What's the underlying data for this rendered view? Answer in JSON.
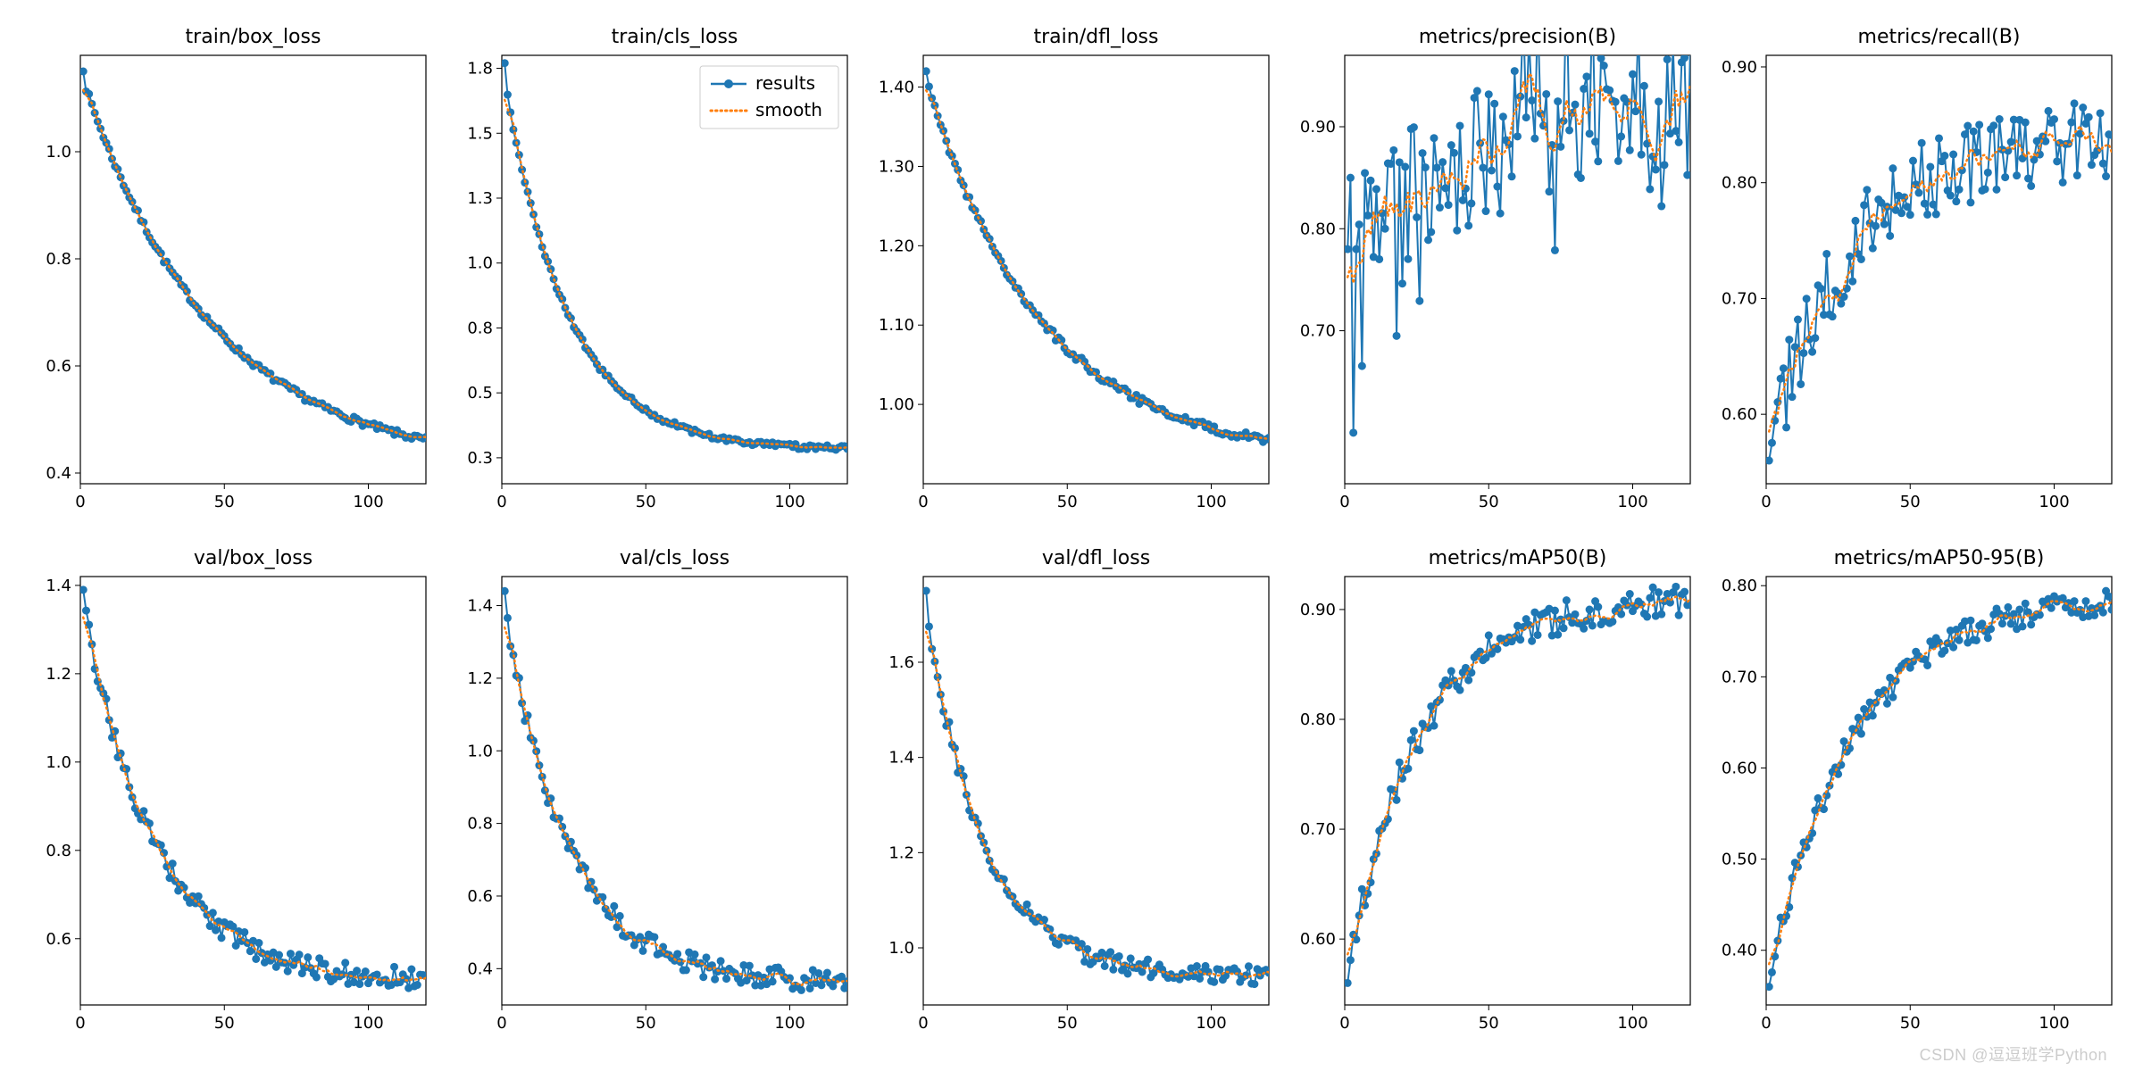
{
  "global": {
    "background_color": "#ffffff",
    "font_family": "DejaVu Sans",
    "title_fontsize": 22,
    "tick_fontsize": 18,
    "legend_fontsize": 20,
    "axis_color": "#000000",
    "tick_color": "#000000",
    "results_color": "#1f77b4",
    "smooth_color": "#ff7f0e",
    "results_line_width": 2.0,
    "results_marker": "circle",
    "results_marker_size": 4.5,
    "smooth_line_width": 2.5,
    "smooth_dash": "1.5,4",
    "n_points": 120,
    "xlim": [
      0,
      120
    ],
    "xticks": [
      0,
      50,
      100
    ],
    "watermark_text": "CSDN @逗逗班学Python",
    "watermark_color": "#cccccc"
  },
  "legend": {
    "panel_index": 1,
    "items": [
      "results",
      "smooth"
    ],
    "border_color": "#cccccc",
    "bg_color": "#ffffff"
  },
  "panels": [
    {
      "title": "train/box_loss",
      "type": "line",
      "curve": "decay",
      "start": 1.15,
      "end": 0.41,
      "tau": 45,
      "noise": 0.006,
      "ylim": [
        0.38,
        1.18
      ],
      "yticks": [
        0.4,
        0.6,
        0.8,
        1.0
      ]
    },
    {
      "title": "train/cls_loss",
      "type": "line",
      "curve": "decay",
      "start": 1.77,
      "end": 0.28,
      "tau": 22,
      "noise": 0.01,
      "ylim": [
        0.15,
        1.8
      ],
      "yticks": [
        0.25,
        0.5,
        0.75,
        1.0,
        1.25,
        1.5,
        1.75
      ],
      "show_legend": true
    },
    {
      "title": "train/dfl_loss",
      "type": "line",
      "curve": "decay",
      "start": 1.42,
      "end": 0.93,
      "tau": 40,
      "noise": 0.005,
      "ylim": [
        0.9,
        1.44
      ],
      "yticks": [
        1.0,
        1.1,
        1.2,
        1.3,
        1.4
      ]
    },
    {
      "title": "metrics/precision(B)",
      "type": "line",
      "curve": "growth",
      "start": 0.78,
      "end": 0.93,
      "tau": 50,
      "noise": 0.065,
      "ylim": [
        0.55,
        0.97
      ],
      "yticks": [
        0.7,
        0.8,
        0.9
      ],
      "first_dip": 0.6
    },
    {
      "title": "metrics/recall(B)",
      "type": "line",
      "curve": "growth",
      "start": 0.56,
      "end": 0.84,
      "tau": 28,
      "noise": 0.035,
      "ylim": [
        0.54,
        0.91
      ],
      "yticks": [
        0.6,
        0.7,
        0.8,
        0.9
      ]
    },
    {
      "title": "val/box_loss",
      "type": "line",
      "curve": "decay",
      "start": 1.39,
      "end": 0.5,
      "tau": 25,
      "noise": 0.025,
      "ylim": [
        0.45,
        1.42
      ],
      "yticks": [
        0.6,
        0.8,
        1.0,
        1.2,
        1.4
      ]
    },
    {
      "title": "val/cls_loss",
      "type": "line",
      "curve": "decay",
      "start": 1.44,
      "end": 0.36,
      "tau": 22,
      "noise": 0.03,
      "ylim": [
        0.3,
        1.48
      ],
      "yticks": [
        0.4,
        0.6,
        0.8,
        1.0,
        1.2,
        1.4
      ]
    },
    {
      "title": "val/dfl_loss",
      "type": "line",
      "curve": "decay",
      "start": 1.75,
      "end": 0.94,
      "tau": 20,
      "noise": 0.02,
      "ylim": [
        0.88,
        1.78
      ],
      "yticks": [
        1.0,
        1.2,
        1.4,
        1.6
      ]
    },
    {
      "title": "metrics/mAP50(B)",
      "type": "line",
      "curve": "growth",
      "start": 0.56,
      "end": 0.91,
      "tau": 25,
      "noise": 0.015,
      "ylim": [
        0.54,
        0.93
      ],
      "yticks": [
        0.6,
        0.7,
        0.8,
        0.9
      ]
    },
    {
      "title": "metrics/mAP50-95(B)",
      "type": "line",
      "curve": "growth",
      "start": 0.36,
      "end": 0.79,
      "tau": 30,
      "noise": 0.015,
      "ylim": [
        0.34,
        0.81
      ],
      "yticks": [
        0.4,
        0.5,
        0.6,
        0.7,
        0.8
      ]
    }
  ]
}
